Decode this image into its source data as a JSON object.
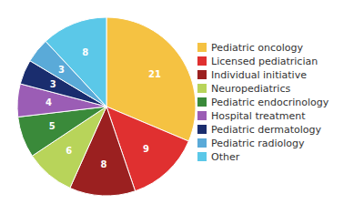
{
  "chart_data": {
    "type": "pie",
    "categories": [
      "Pediatric oncology",
      "Licensed pediatrician",
      "Individual initiative",
      "Neuropediatrics",
      "Pediatric endocrinology",
      "Hospital treatment",
      "Pediatric dermatology",
      "Pediatric radiology",
      "Other"
    ],
    "values": [
      21,
      9,
      8,
      6,
      5,
      4,
      3,
      3,
      8
    ],
    "colors": [
      "#F5C242",
      "#E03030",
      "#9B2020",
      "#B8D45A",
      "#3A8A3A",
      "#9B5DB5",
      "#1A2D6E",
      "#5AAAD8",
      "#5BC8E8"
    ],
    "data_labels": true,
    "legend": "right"
  }
}
